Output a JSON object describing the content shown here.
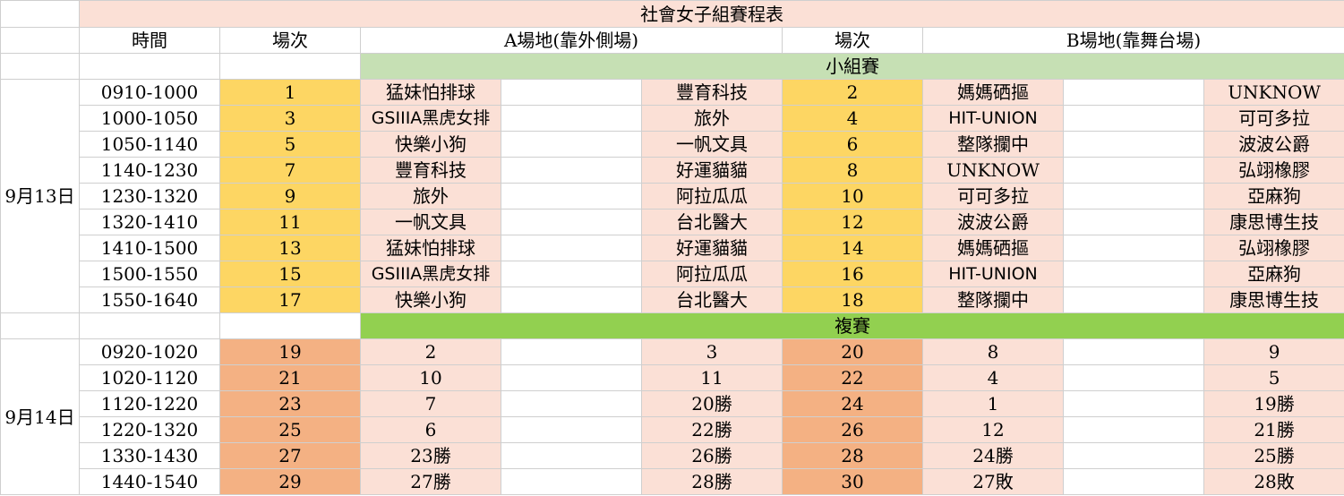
{
  "title": "社會女子組賽程表",
  "headers": {
    "time": "時間",
    "game_no_a": "場次",
    "court_a": "A場地(靠外側場)",
    "game_no_b": "場次",
    "court_b": "B場地(靠舞台場)"
  },
  "sections": {
    "group": "小組賽",
    "knockout": "複賽"
  },
  "day1": {
    "date": "9月13日",
    "rows": [
      {
        "time": "0910-1000",
        "no_a": "1",
        "a1": "猛妹怕排球",
        "a2": "豐育科技",
        "no_b": "2",
        "b1": "媽媽硒摳",
        "b2": "UNKNOW"
      },
      {
        "time": "1000-1050",
        "no_a": "3",
        "a1": "GSIIIA黑虎女排",
        "a2": "旅外",
        "no_b": "4",
        "b1": "HIT-UNION",
        "b2": "可可多拉"
      },
      {
        "time": "1050-1140",
        "no_a": "5",
        "a1": "快樂小狗",
        "a2": "一帆文具",
        "no_b": "6",
        "b1": "整隊攔中",
        "b2": "波波公爵"
      },
      {
        "time": "1140-1230",
        "no_a": "7",
        "a1": "豐育科技",
        "a2": "好運貓貓",
        "no_b": "8",
        "b1": "UNKNOW",
        "b2": "弘翊橡膠"
      },
      {
        "time": "1230-1320",
        "no_a": "9",
        "a1": "旅外",
        "a2": "阿拉瓜瓜",
        "no_b": "10",
        "b1": "可可多拉",
        "b2": "亞麻狗"
      },
      {
        "time": "1320-1410",
        "no_a": "11",
        "a1": "一帆文具",
        "a2": "台北醫大",
        "no_b": "12",
        "b1": "波波公爵",
        "b2": "康思博生技"
      },
      {
        "time": "1410-1500",
        "no_a": "13",
        "a1": "猛妹怕排球",
        "a2": "好運貓貓",
        "no_b": "14",
        "b1": "媽媽硒摳",
        "b2": "弘翊橡膠"
      },
      {
        "time": "1500-1550",
        "no_a": "15",
        "a1": "GSIIIA黑虎女排",
        "a2": "阿拉瓜瓜",
        "no_b": "16",
        "b1": "HIT-UNION",
        "b2": "亞麻狗"
      },
      {
        "time": "1550-1640",
        "no_a": "17",
        "a1": "快樂小狗",
        "a2": "台北醫大",
        "no_b": "18",
        "b1": "整隊攔中",
        "b2": "康思博生技"
      }
    ]
  },
  "day2": {
    "date": "9月14日",
    "rows": [
      {
        "time": "0920-1020",
        "no_a": "19",
        "a1": "2",
        "a2": "3",
        "no_b": "20",
        "b1": "8",
        "b2": "9"
      },
      {
        "time": "1020-1120",
        "no_a": "21",
        "a1": "10",
        "a2": "11",
        "no_b": "22",
        "b1": "4",
        "b2": "5"
      },
      {
        "time": "1120-1220",
        "no_a": "23",
        "a1": "7",
        "a2": "20勝",
        "no_b": "24",
        "b1": "1",
        "b2": "19勝"
      },
      {
        "time": "1220-1320",
        "no_a": "25",
        "a1": "6",
        "a2": "22勝",
        "no_b": "26",
        "b1": "12",
        "b2": "21勝"
      },
      {
        "time": "1330-1430",
        "no_a": "27",
        "a1": "23勝",
        "a2": "26勝",
        "no_b": "28",
        "b1": "24勝",
        "b2": "25勝"
      },
      {
        "time": "1440-1540",
        "no_a": "29",
        "a1": "27勝",
        "a2": "28勝",
        "no_b": "30",
        "b1": "27敗",
        "b2": "28敗"
      }
    ]
  },
  "colors": {
    "pink": "#fbe0d6",
    "gold": "#fdd663",
    "salmon": "#f4b183",
    "group_header": "#c6e0b4",
    "knockout_header": "#92d050"
  }
}
